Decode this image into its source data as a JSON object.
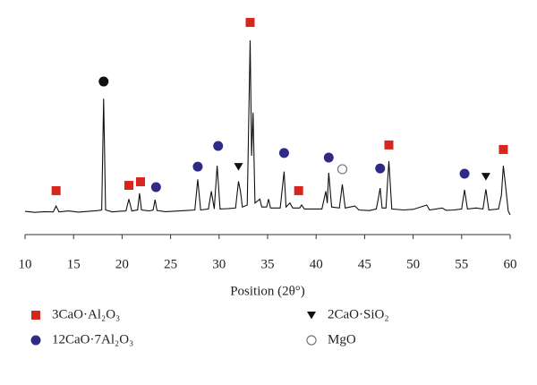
{
  "chart_data": {
    "type": "line",
    "xlabel": "Position (2θ°)",
    "color": "#111111",
    "xlim": [
      10,
      60
    ],
    "xticks": [
      10,
      15,
      20,
      25,
      30,
      35,
      40,
      45,
      50,
      55,
      60
    ],
    "ylim": [
      0,
      110
    ],
    "x": [
      10.0,
      11.0,
      12.0,
      12.9,
      13.2,
      13.5,
      14.5,
      15.5,
      16.5,
      17.5,
      17.9,
      18.1,
      18.3,
      19.0,
      19.6,
      20.4,
      20.7,
      21.0,
      21.6,
      21.8,
      22.0,
      22.8,
      23.2,
      23.4,
      23.6,
      24.5,
      25.5,
      26.5,
      27.5,
      27.8,
      28.1,
      28.9,
      29.2,
      29.5,
      29.8,
      30.1,
      31.0,
      31.7,
      32.0,
      32.2,
      32.4,
      32.9,
      33.2,
      33.35,
      33.5,
      33.7,
      34.2,
      34.4,
      34.9,
      35.1,
      35.3,
      36.3,
      36.7,
      36.9,
      37.3,
      37.6,
      38.3,
      38.5,
      38.8,
      40.6,
      41.0,
      41.15,
      41.3,
      41.6,
      42.4,
      42.7,
      43.0,
      44.0,
      44.4,
      45.5,
      46.2,
      46.4,
      46.6,
      46.8,
      47.2,
      47.5,
      47.8,
      49.0,
      50.0,
      51.4,
      51.7,
      53.0,
      53.4,
      54.2,
      55.0,
      55.3,
      55.6,
      56.5,
      57.2,
      57.5,
      57.8,
      58.8,
      59.1,
      59.3,
      59.5,
      59.8,
      60.0
    ],
    "values": [
      11.8,
      11.3,
      11.6,
      11.5,
      14.5,
      11.5,
      12.0,
      11.4,
      11.8,
      12.2,
      12.5,
      69,
      12.5,
      11.5,
      11.8,
      12.0,
      18,
      12,
      12.5,
      21,
      12.5,
      12.0,
      12.5,
      17.7,
      12.2,
      11.6,
      11.9,
      12.2,
      12.5,
      28,
      12.5,
      13,
      22,
      13,
      35,
      13,
      13.2,
      13.5,
      27,
      22,
      14,
      15,
      98.6,
      40,
      62,
      16,
      18,
      14,
      14,
      18,
      13.5,
      13.5,
      32,
      14,
      16,
      13.5,
      13.5,
      15,
      13,
      13,
      22,
      16,
      31.4,
      14,
      13.5,
      25.5,
      13.5,
      14.5,
      12.5,
      12.2,
      13,
      18,
      23.6,
      13.5,
      13.5,
      37.3,
      13,
      12.5,
      12.8,
      15,
      12.5,
      13.5,
      12.3,
      12.5,
      13,
      22.7,
      13,
      13.5,
      13,
      23,
      12.5,
      13,
      20,
      35,
      26,
      12,
      10
    ],
    "markers": [
      {
        "name": "3CaO·Al₂O₃",
        "color": "#d7261e",
        "marker": "square",
        "x": [
          13.2,
          20.7,
          21.9,
          33.2,
          38.2,
          47.5,
          59.3
        ],
        "values": [
          22.3,
          25,
          26.8,
          107.7,
          22.3,
          45.5,
          43.2
        ]
      },
      {
        "name": "12CaO·7Al₂O₃",
        "color": "#2e2a86",
        "marker": "circle",
        "x": [
          23.5,
          27.8,
          29.9,
          36.7,
          41.3,
          46.6,
          55.3
        ],
        "values": [
          24.1,
          34.5,
          45,
          41.4,
          39.1,
          33.6,
          30.9
        ]
      },
      {
        "name": "2CaO·SiO₂",
        "color": "#111111",
        "marker": "triangle",
        "x": [
          32.0,
          57.5
        ],
        "values": [
          34.5,
          29.5
        ]
      },
      {
        "name": "MgO",
        "color": "#777777",
        "marker": "open-circle",
        "x": [
          42.7
        ],
        "values": [
          33.2
        ]
      },
      {
        "color": "#111111",
        "marker": "circle",
        "x": [
          18.1
        ],
        "values": [
          77.7
        ]
      }
    ]
  }
}
